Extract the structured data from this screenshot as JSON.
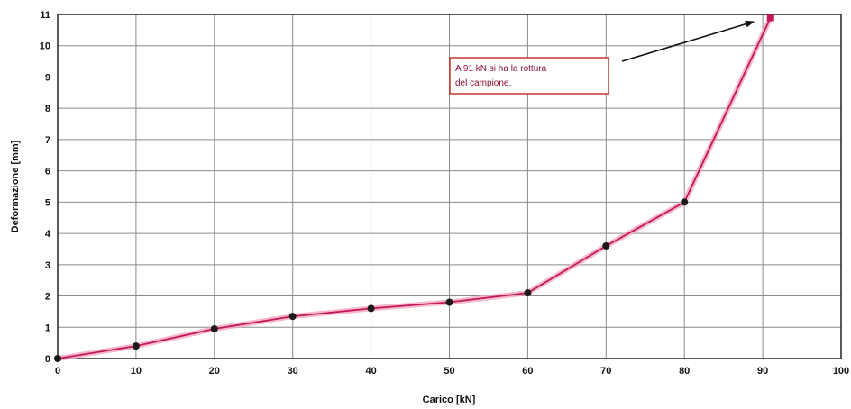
{
  "chart_data": {
    "type": "line",
    "title": "",
    "xlabel": "Carico [kN]",
    "ylabel": "Deformazione [mm]",
    "xlim": [
      0,
      100
    ],
    "ylim": [
      0,
      11
    ],
    "xticks": [
      0,
      10,
      20,
      30,
      40,
      50,
      60,
      70,
      80,
      90,
      100
    ],
    "yticks": [
      0,
      1,
      2,
      3,
      4,
      5,
      6,
      7,
      8,
      9,
      10,
      11
    ],
    "grid": true,
    "legend": "none",
    "series": [
      {
        "x": [
          0,
          10,
          20,
          30,
          40,
          50,
          60,
          70,
          80,
          91
        ],
        "y": [
          0,
          0.4,
          0.95,
          1.35,
          1.6,
          1.8,
          2.1,
          3.6,
          5.0,
          10.9
        ]
      }
    ],
    "annotation": {
      "lines": [
        "A 91 kN si ha la rottura",
        "del campione."
      ],
      "points_to": [
        91,
        10.9
      ]
    },
    "colors": {
      "line": "#c2185b",
      "line_glow": "#f4a6c0",
      "marker": "#1a1a1a",
      "final_marker": "#c2185b",
      "grid": "#8a8a8a",
      "note_border": "#c0392b",
      "note_text": "#8a1030"
    }
  }
}
